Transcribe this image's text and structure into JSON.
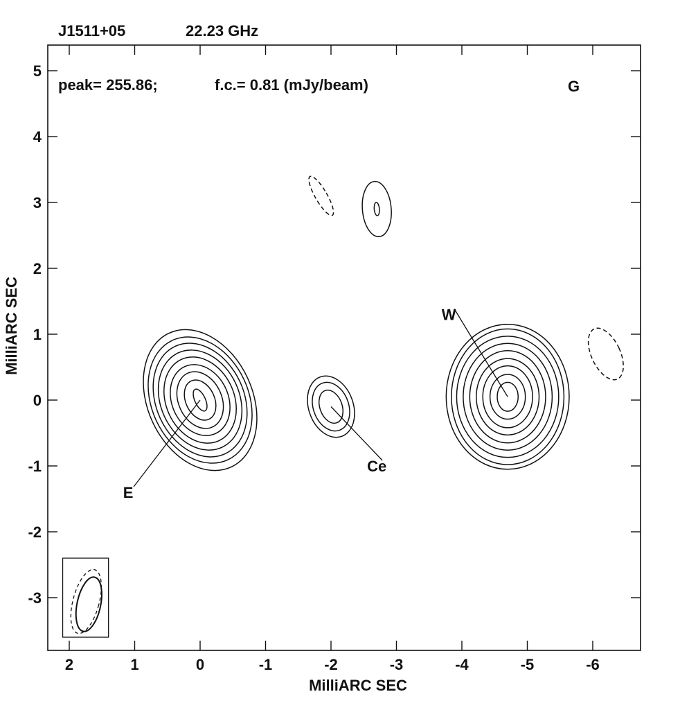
{
  "header": {
    "source": "J1511+05",
    "frequency": "22.23 GHz"
  },
  "info": {
    "peak_text": "peak= 255.86;",
    "fc_text": "f.c.= 0.81 (mJy/beam)",
    "panel_letter": "G"
  },
  "colors": {
    "contour": "#111111",
    "background": "#ffffff"
  },
  "chart_data": {
    "type": "contour",
    "xlabel": "MilliARC SEC",
    "ylabel": "MilliARC SEC",
    "xlim": [
      2.2,
      -6.8
    ],
    "ylim": [
      -3.8,
      5.4
    ],
    "x_ticks": [
      2,
      1,
      0,
      -1,
      -2,
      -3,
      -4,
      -5,
      -6
    ],
    "x_tick_labels": [
      "2",
      "1",
      "0",
      "-1",
      "-2",
      "-3",
      "-4",
      "-5",
      "-6"
    ],
    "y_ticks": [
      5,
      4,
      3,
      2,
      1,
      0,
      -1,
      -2,
      -3
    ],
    "y_tick_labels": [
      "5",
      "4",
      "3",
      "2",
      "1",
      "0",
      "-1",
      "-2",
      "-3"
    ],
    "grid": false,
    "components": [
      {
        "label": "E",
        "center": [
          0.0,
          0.0
        ],
        "label_pos": [
          1.1,
          -1.4
        ],
        "tilt_deg": 25,
        "contours": [
          {
            "rx": 0.08,
            "ry": 0.18,
            "dashed": false
          },
          {
            "rx": 0.22,
            "ry": 0.32,
            "dashed": false
          },
          {
            "rx": 0.33,
            "ry": 0.45,
            "dashed": false
          },
          {
            "rx": 0.43,
            "ry": 0.56,
            "dashed": false
          },
          {
            "rx": 0.52,
            "ry": 0.68,
            "dashed": false
          },
          {
            "rx": 0.6,
            "ry": 0.79,
            "dashed": false
          },
          {
            "rx": 0.67,
            "ry": 0.9,
            "dashed": false
          },
          {
            "rx": 0.74,
            "ry": 1.0,
            "dashed": false
          },
          {
            "rx": 0.8,
            "ry": 1.12,
            "dashed": false
          }
        ]
      },
      {
        "label": "Ce",
        "center": [
          -2.0,
          -0.1
        ],
        "label_pos": [
          -2.7,
          -1.0
        ],
        "tilt_deg": 20,
        "contours": [
          {
            "rx": 0.17,
            "ry": 0.26,
            "dashed": false
          },
          {
            "rx": 0.27,
            "ry": 0.38,
            "dashed": false
          },
          {
            "rx": 0.34,
            "ry": 0.48,
            "dashed": false
          }
        ]
      },
      {
        "label": "W",
        "center": [
          -4.7,
          0.05
        ],
        "label_pos": [
          -3.8,
          1.3
        ],
        "tilt_deg": 0,
        "contours": [
          {
            "rx": 0.16,
            "ry": 0.22,
            "dashed": false
          },
          {
            "rx": 0.27,
            "ry": 0.34,
            "dashed": false
          },
          {
            "rx": 0.38,
            "ry": 0.47,
            "dashed": false
          },
          {
            "rx": 0.48,
            "ry": 0.58,
            "dashed": false
          },
          {
            "rx": 0.58,
            "ry": 0.7,
            "dashed": false
          },
          {
            "rx": 0.68,
            "ry": 0.81,
            "dashed": false
          },
          {
            "rx": 0.78,
            "ry": 0.92,
            "dashed": false
          },
          {
            "rx": 0.86,
            "ry": 1.03,
            "dashed": false
          },
          {
            "rx": 0.94,
            "ry": 1.1,
            "dashed": false
          }
        ]
      },
      {
        "label": "",
        "center": [
          -2.7,
          2.9
        ],
        "tilt_deg": 5,
        "contours": [
          {
            "rx": 0.04,
            "ry": 0.1,
            "dashed": false
          },
          {
            "rx": 0.22,
            "ry": 0.42,
            "dashed": false
          }
        ]
      },
      {
        "label": "",
        "center": [
          -1.85,
          3.1
        ],
        "tilt_deg": 30,
        "contours": [
          {
            "rx": 0.09,
            "ry": 0.34,
            "dashed": true
          }
        ]
      },
      {
        "label": "",
        "center": [
          -6.2,
          0.7
        ],
        "tilt_deg": 25,
        "contours": [
          {
            "rx": 0.22,
            "ry": 0.42,
            "dashed": true
          }
        ]
      }
    ],
    "beam": {
      "center": [
        1.7,
        -3.1
      ],
      "box_x": [
        2.1,
        1.4
      ],
      "box_y": [
        -3.6,
        -2.4
      ],
      "solid": {
        "rx": 0.18,
        "ry": 0.42,
        "tilt_deg": 12
      },
      "dashed": {
        "rx": 0.2,
        "ry": 0.5,
        "tilt_deg": 15
      }
    }
  }
}
